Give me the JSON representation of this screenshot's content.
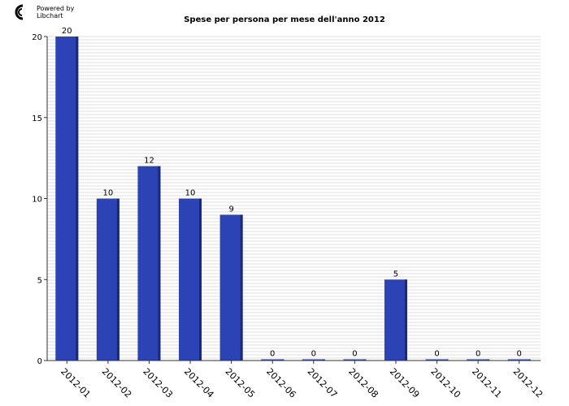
{
  "branding": {
    "line1": "Powered by",
    "line2": "Libchart"
  },
  "colors": {
    "bar": "#2b43b5",
    "bar_shadow": "#1b2a78",
    "grid": "#dcdcdc",
    "axis": "#333333"
  },
  "chart_data": {
    "type": "bar",
    "title": "Spese per persona per mese dell'anno 2012",
    "xlabel": "",
    "ylabel": "",
    "categories": [
      "2012-01",
      "2012-02",
      "2012-03",
      "2012-04",
      "2012-05",
      "2012-06",
      "2012-07",
      "2012-08",
      "2012-09",
      "2012-10",
      "2012-11",
      "2012-12"
    ],
    "values": [
      20,
      10,
      12,
      10,
      9,
      0,
      0,
      0,
      5,
      0,
      0,
      0
    ],
    "ylim": [
      0,
      20
    ],
    "yticks": [
      0,
      5,
      10,
      15,
      20
    ],
    "grid": true,
    "legend": "none"
  }
}
